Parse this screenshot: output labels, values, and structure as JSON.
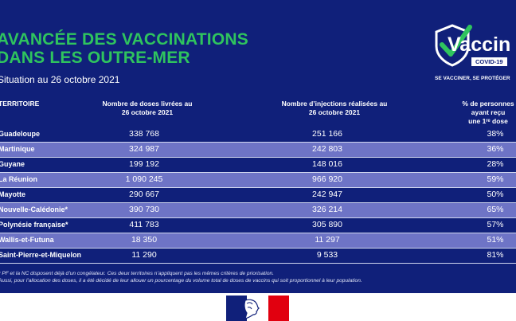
{
  "title_line1": "AVANCÉE DES VACCINATIONS",
  "title_line2": "DANS LES OUTRE-MER",
  "subtitle": "Situation au 26 octobre 2021",
  "logo": {
    "word": "Vaccin",
    "badge": "COVID-19",
    "tagline": "SE VACCINER, SE PROTÉGER",
    "icon": "check-shield-icon"
  },
  "columns": {
    "territoire": "TERRITOIRE",
    "doses_l1": "Nombre de doses livrées au",
    "doses_l2": "26 octobre 2021",
    "injections_l1": "Nombre d’injections réalisées au",
    "injections_l2": "26 octobre 2021",
    "pct_l1": "% de personnes",
    "pct_l2": "ayant reçu",
    "pct_l3": "une 1ʳᵉ dose"
  },
  "rows": [
    {
      "name": "Guadeloupe",
      "doses": "338 768",
      "injections": "251 166",
      "pct": "38%"
    },
    {
      "name": "Martinique",
      "doses": "324 987",
      "injections": "242 803",
      "pct": "36%"
    },
    {
      "name": "Guyane",
      "doses": "199 192",
      "injections": "148 016",
      "pct": "28%"
    },
    {
      "name": "La Réunion",
      "doses": "1 090 245",
      "injections": "966 920",
      "pct": "59%"
    },
    {
      "name": "Mayotte",
      "doses": "290 667",
      "injections": "242 947",
      "pct": "50%"
    },
    {
      "name": "Nouvelle-Calédonie*",
      "doses": "390 730",
      "injections": "326 214",
      "pct": "65%"
    },
    {
      "name": "Polynésie française*",
      "doses": "411 783",
      "injections": "305 890",
      "pct": "57%"
    },
    {
      "name": "Wallis-et-Futuna",
      "doses": "18 350",
      "injections": "11 297",
      "pct": "51%"
    },
    {
      "name": "Saint-Pierre-et-Miquelon",
      "doses": "11 290",
      "injections": "9 533",
      "pct": "81%"
    }
  ],
  "note1": "* PF et la NC disposent déjà d’un congélateur. Ces deux territoires n’appliquent pas les mêmes critères de priorisation.",
  "note2": "Aussi, pour l’allocation des doses, il a été décidé de leur allouer un pourcentage du volume total de doses de vaccins qui soit proportionnel à leur population.",
  "colors": {
    "background": "#10207a",
    "title": "#2fc45e",
    "alt_row": "#6e74c6",
    "flag_red": "#e1000f"
  },
  "footer_logo": "marianne-logo"
}
